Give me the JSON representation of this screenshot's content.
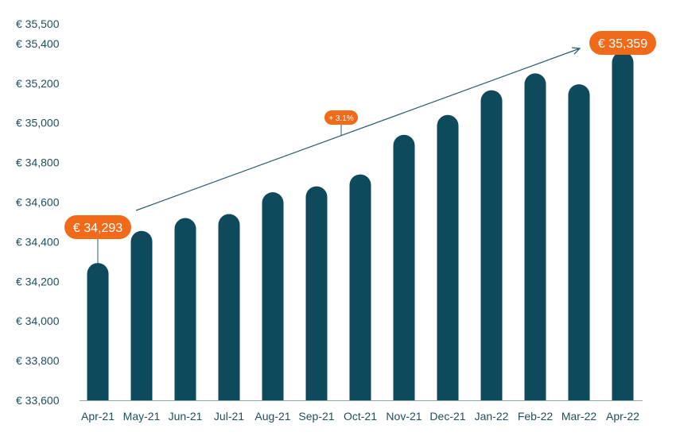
{
  "chart_data": {
    "type": "bar",
    "categories": [
      "Apr-21",
      "May-21",
      "Jun-21",
      "Jul-21",
      "Aug-21",
      "Sep-21",
      "Oct-21",
      "Nov-21",
      "Dec-21",
      "Jan-22",
      "Feb-22",
      "Mar-22",
      "Apr-22"
    ],
    "values": [
      34293,
      34455,
      34520,
      34540,
      34650,
      34680,
      34740,
      34940,
      35040,
      35165,
      35250,
      35195,
      35359
    ],
    "ylim": [
      33600,
      35500
    ],
    "yticks": [
      33600,
      33800,
      34000,
      34200,
      34400,
      34600,
      34800,
      35000,
      35200,
      35400,
      35500
    ],
    "ytick_labels": [
      "€ 33,600",
      "€ 33,800",
      "€ 34,000",
      "€ 34,200",
      "€ 34,400",
      "€ 34,600",
      "€ 34,800",
      "€ 35,000",
      "€ 35,200",
      "€ 35,400",
      "€ 35,500"
    ],
    "grid": false,
    "legend": "none",
    "annotations": {
      "start_label": "€ 34,293",
      "end_label": "€ 35,359",
      "growth_label": "+ 3.1%"
    },
    "colors": {
      "bar": "#0e4a5c",
      "accent": "#f06a1a",
      "axis_text": "#1f4e5f",
      "arrow": "#2b5b6a",
      "baseline": "#9aa7ad"
    }
  }
}
